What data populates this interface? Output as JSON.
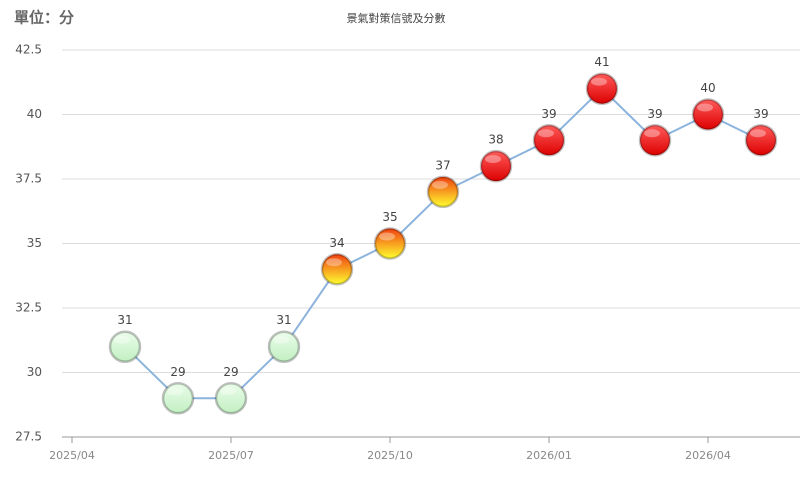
{
  "unit_label": "單位：分",
  "chart_data": {
    "type": "line",
    "title": "景氣對策信號及分數",
    "x": [
      "2025/05",
      "2025/06",
      "2025/07",
      "2025/08",
      "2025/09",
      "2025/10",
      "2025/11",
      "2025/12",
      "2026/01",
      "2026/02",
      "2026/03",
      "2026/04",
      "2026/05"
    ],
    "series": [
      {
        "color": "#8db4dc",
        "values": [
          31,
          29,
          29,
          31,
          34,
          35,
          37,
          38,
          39,
          41,
          39,
          40,
          39
        ],
        "marker_gradients": [
          [
            "#eafdea",
            "#c2efc2"
          ],
          [
            "#eafdea",
            "#c2efc2"
          ],
          [
            "#eafdea",
            "#c2efc2"
          ],
          [
            "#eafdea",
            "#c2efc2"
          ],
          [
            "#f04010",
            "#ffff30"
          ],
          [
            "#f04010",
            "#ffff30"
          ],
          [
            "#f04010",
            "#ffff30"
          ],
          [
            "#ff5a5a",
            "#dd0000"
          ],
          [
            "#ff5a5a",
            "#dd0000"
          ],
          [
            "#ff5a5a",
            "#dd0000"
          ],
          [
            "#ff5a5a",
            "#dd0000"
          ],
          [
            "#ff5a5a",
            "#dd0000"
          ],
          [
            "#ff5a5a",
            "#dd0000"
          ]
        ]
      }
    ],
    "ylim": [
      27.5,
      42.5
    ],
    "yticks": [
      27.5,
      30,
      32.5,
      35,
      37.5,
      40,
      42.5
    ],
    "xticks": [
      "2025/04",
      "2025/07",
      "2025/10",
      "2026/01",
      "2026/04"
    ],
    "grid": true
  }
}
